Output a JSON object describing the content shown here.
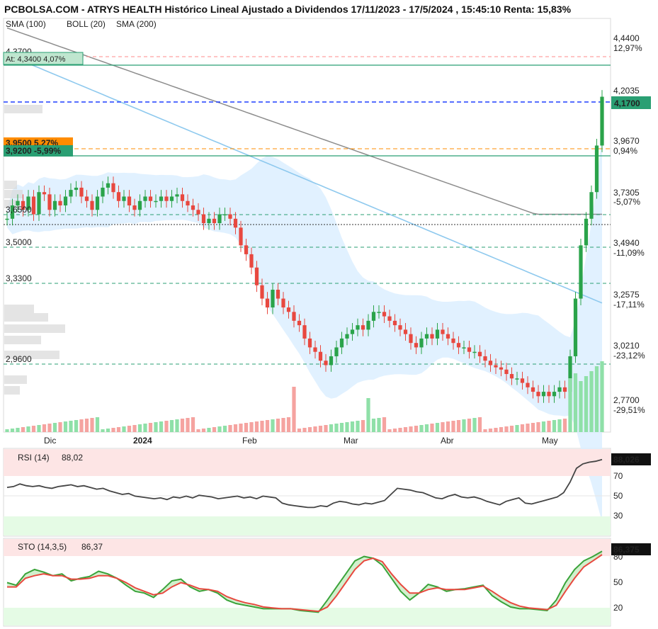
{
  "header": {
    "title": "PCBOLSA.COM - ATRYS HEALTH Histórico Lineal Ajustado a Dividendos 17/11/2023 - 17/5/2024 , 15:45:10 Renta: 15,83%",
    "legend": [
      {
        "label": "SMA (100)",
        "color": "#8ec9ee"
      },
      {
        "label": "BOLL (20)",
        "color": "#d7e7f2"
      },
      {
        "label": "SMA (200)",
        "color": "#8c8c8c"
      }
    ]
  },
  "colors": {
    "up": "#2aa34a",
    "down": "#e8483f",
    "boll_fill": "#dcefff",
    "sma100": "#8ec9ee",
    "sma200": "#8c8c8c",
    "rsi_top_band": "#fde5e5",
    "rsi_bottom_band": "#e5fbe5",
    "blue_dashed": "#1f3fff",
    "orange": "#ff8c00"
  },
  "price_axis": {
    "ticks": [
      "4,4400",
      "4,2035",
      "3,9670",
      "3,7305",
      "3,4940",
      "3,2575",
      "3,0210",
      "2,7700"
    ],
    "pct": [
      "12,97%",
      "0,94%",
      "-5,07%",
      "-11,09%",
      "-17,11%",
      "-23,12%",
      "-29,51%"
    ],
    "current": "4,1700",
    "left_labels": [
      "4,3700",
      "3,6500",
      "3,5000",
      "3,3300",
      "2,9600"
    ],
    "orange_box": "3,9500  5,27%",
    "green_box": "3,9200  -5,99%",
    "ath_box": "At: 4,3400  4,07%"
  },
  "time_axis": {
    "labels": [
      "Dic",
      "2024",
      "Feb",
      "Mar",
      "Abr",
      "May"
    ]
  },
  "rsi": {
    "title": "RSI (14)",
    "value": "88,02",
    "current": "88,026",
    "levels": [
      "70",
      "50",
      "30"
    ]
  },
  "sto": {
    "title": "STO (14,3,5)",
    "value": "86,37",
    "current": "86,375",
    "levels": [
      "80",
      "50",
      "20"
    ]
  },
  "chart_data": {
    "type": "candlestick",
    "title": "ATRYS HEALTH Histórico Lineal Ajustado a Dividendos 17/11/2023 - 17/5/2024",
    "ylim": [
      2.77,
      4.44
    ],
    "close": [
      3.62,
      3.68,
      3.7,
      3.66,
      3.72,
      3.64,
      3.74,
      3.73,
      3.66,
      3.7,
      3.68,
      3.72,
      3.75,
      3.76,
      3.72,
      3.7,
      3.66,
      3.72,
      3.76,
      3.78,
      3.74,
      3.7,
      3.72,
      3.68,
      3.66,
      3.7,
      3.72,
      3.7,
      3.7,
      3.72,
      3.7,
      3.72,
      3.73,
      3.7,
      3.68,
      3.66,
      3.64,
      3.6,
      3.62,
      3.6,
      3.64,
      3.64,
      3.62,
      3.58,
      3.5,
      3.46,
      3.4,
      3.32,
      3.26,
      3.22,
      3.3,
      3.26,
      3.22,
      3.2,
      3.16,
      3.14,
      3.08,
      3.04,
      3.02,
      2.98,
      2.96,
      3.0,
      3.04,
      3.08,
      3.1,
      3.12,
      3.14,
      3.12,
      3.16,
      3.2,
      3.2,
      3.18,
      3.16,
      3.14,
      3.12,
      3.1,
      3.06,
      3.04,
      3.08,
      3.1,
      3.08,
      3.12,
      3.1,
      3.08,
      3.06,
      3.04,
      3.04,
      3.02,
      3.02,
      3.0,
      2.98,
      2.96,
      2.95,
      2.94,
      2.92,
      2.9,
      2.9,
      2.88,
      2.86,
      2.84,
      2.82,
      2.84,
      2.82,
      2.84,
      2.86,
      2.84,
      3.0,
      3.26,
      3.5,
      3.62,
      3.74,
      3.95,
      4.17
    ],
    "rsi": [
      56,
      57,
      60,
      58,
      57,
      58,
      56,
      55,
      57,
      58,
      59,
      57,
      58,
      56,
      54,
      55,
      52,
      50,
      48,
      49,
      46,
      45,
      44,
      43,
      44,
      42,
      45,
      44,
      46,
      44,
      47,
      46,
      45,
      43,
      44,
      45,
      46,
      44,
      45,
      43,
      46,
      45,
      44,
      38,
      36,
      35,
      34,
      33,
      33,
      35,
      34,
      38,
      40,
      39,
      37,
      36,
      38,
      37,
      39,
      41,
      48,
      55,
      54,
      53,
      51,
      50,
      47,
      44,
      43,
      46,
      48,
      45,
      44,
      45,
      43,
      40,
      38,
      36,
      40,
      42,
      44,
      38,
      37,
      39,
      41,
      43,
      45,
      50,
      62,
      78,
      83,
      85,
      86,
      88
    ],
    "sto_k": [
      50,
      47,
      60,
      65,
      62,
      58,
      60,
      52,
      55,
      57,
      63,
      60,
      55,
      47,
      40,
      38,
      33,
      42,
      52,
      54,
      45,
      40,
      42,
      38,
      30,
      26,
      24,
      22,
      20,
      20,
      20,
      20,
      18,
      17,
      16,
      30,
      45,
      60,
      75,
      80,
      78,
      70,
      55,
      40,
      30,
      38,
      48,
      45,
      40,
      42,
      43,
      45,
      47,
      35,
      28,
      22,
      20,
      20,
      19,
      18,
      30,
      50,
      65,
      75,
      80,
      86
    ],
    "sto_d": [
      45,
      45,
      55,
      58,
      60,
      58,
      58,
      54,
      54,
      55,
      58,
      58,
      55,
      50,
      44,
      40,
      36,
      38,
      45,
      50,
      47,
      43,
      42,
      40,
      34,
      30,
      27,
      25,
      22,
      21,
      20,
      20,
      19,
      18,
      17,
      22,
      35,
      50,
      65,
      75,
      78,
      74,
      60,
      48,
      38,
      38,
      42,
      44,
      42,
      42,
      42,
      44,
      46,
      40,
      33,
      27,
      23,
      21,
      20,
      19,
      24,
      40,
      55,
      68,
      75,
      82
    ]
  }
}
